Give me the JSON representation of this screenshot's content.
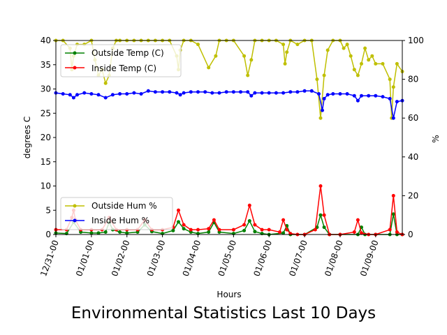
{
  "chart_data": {
    "type": "line",
    "title": "Environmental Statistics Last 10 Days",
    "xlabel": "Hours",
    "ylabel_left": "degrees C",
    "ylabel_right": "%",
    "xlim": [
      0,
      9.75
    ],
    "ylim_left": [
      0,
      40
    ],
    "ylim_right": [
      0,
      100
    ],
    "x_ticks": [
      0,
      1,
      2,
      3,
      4,
      5,
      6,
      7,
      8,
      9
    ],
    "x_tick_labels": [
      "12/31-00",
      "01/01-00",
      "01/02-00",
      "01/03-00",
      "01/04-00",
      "01/05-00",
      "01/06-00",
      "01/07-00",
      "01/08-00",
      "01/09-00"
    ],
    "y_ticks_left": [
      0,
      5,
      10,
      15,
      20,
      25,
      30,
      35,
      40
    ],
    "y_ticks_right": [
      0,
      20,
      40,
      60,
      80,
      100
    ],
    "legend_left": {
      "placement": "upper-left",
      "entries": [
        "Outside Temp (C)",
        "Inside Temp (C)"
      ]
    },
    "legend_right": {
      "placement": "lower-left",
      "entries": [
        "Outside Hum %",
        "Inside Hum %"
      ]
    },
    "series": [
      {
        "name": "Outside Hum %",
        "axis": "right",
        "color": "#bfbf00",
        "x": [
          0,
          0.2,
          0.4,
          0.45,
          0.5,
          0.6,
          0.8,
          1.0,
          1.1,
          1.2,
          1.3,
          1.4,
          1.5,
          1.6,
          1.7,
          1.8,
          2.0,
          2.2,
          2.4,
          2.6,
          2.8,
          3.0,
          3.2,
          3.4,
          3.45,
          3.5,
          3.6,
          3.8,
          4.0,
          4.3,
          4.5,
          4.6,
          4.8,
          5.0,
          5.3,
          5.4,
          5.5,
          5.6,
          5.8,
          6.0,
          6.2,
          6.4,
          6.45,
          6.5,
          6.6,
          6.8,
          7.0,
          7.2,
          7.35,
          7.45,
          7.55,
          7.65,
          7.8,
          8.0,
          8.1,
          8.2,
          8.3,
          8.4,
          8.5,
          8.6,
          8.7,
          8.8,
          8.9,
          9.0,
          9.2,
          9.4,
          9.45,
          9.5,
          9.6,
          9.75
        ],
        "y": [
          100,
          100,
          96,
          85,
          92,
          98,
          98,
          100,
          90,
          82,
          85,
          78,
          82,
          96,
          100,
          100,
          100,
          100,
          100,
          100,
          100,
          100,
          100,
          92,
          85,
          95,
          100,
          100,
          98,
          86,
          92,
          100,
          100,
          100,
          92,
          82,
          90,
          100,
          100,
          100,
          100,
          98,
          88,
          94,
          100,
          98,
          100,
          100,
          80,
          60,
          82,
          95,
          100,
          100,
          96,
          98,
          92,
          85,
          82,
          88,
          96,
          90,
          92,
          88,
          88,
          80,
          60,
          76,
          88,
          84
        ]
      },
      {
        "name": "Inside Hum %",
        "axis": "right",
        "color": "#0000ff",
        "x": [
          0,
          0.2,
          0.4,
          0.5,
          0.6,
          0.8,
          1.0,
          1.2,
          1.4,
          1.6,
          1.8,
          2.0,
          2.2,
          2.4,
          2.6,
          2.8,
          3.0,
          3.2,
          3.4,
          3.5,
          3.6,
          3.8,
          4.0,
          4.2,
          4.4,
          4.6,
          4.8,
          5.0,
          5.2,
          5.4,
          5.5,
          5.6,
          5.8,
          6.0,
          6.2,
          6.4,
          6.6,
          6.8,
          7.0,
          7.2,
          7.4,
          7.5,
          7.55,
          7.65,
          7.8,
          8.0,
          8.2,
          8.4,
          8.5,
          8.6,
          8.8,
          9.0,
          9.2,
          9.4,
          9.5,
          9.6,
          9.75
        ],
        "y": [
          73,
          72.5,
          72,
          70.5,
          72,
          73,
          72.5,
          72,
          70.5,
          72,
          72.5,
          72.5,
          73,
          72.5,
          74,
          73.5,
          73.5,
          73.5,
          73,
          72,
          73,
          73.5,
          73.5,
          73.5,
          73,
          73,
          73.5,
          73.5,
          73.5,
          73.5,
          71.5,
          73,
          73,
          73,
          73,
          73,
          73.5,
          73.5,
          74,
          74,
          72.5,
          64,
          70,
          72,
          72.5,
          72.5,
          72.5,
          71.5,
          69,
          71.5,
          71.5,
          71.5,
          71,
          70,
          60,
          68.5,
          69
        ]
      },
      {
        "name": "Outside Temp (C)",
        "axis": "left",
        "color": "#008000",
        "x": [
          0,
          0.3,
          0.5,
          0.7,
          1.0,
          1.2,
          1.4,
          1.5,
          1.6,
          1.8,
          2.0,
          2.3,
          2.5,
          2.7,
          3.0,
          3.3,
          3.45,
          3.6,
          3.8,
          4.0,
          4.3,
          4.45,
          4.6,
          5.0,
          5.3,
          5.45,
          5.6,
          5.8,
          6.0,
          6.4,
          6.5,
          6.6,
          7.0,
          7.35,
          7.45,
          7.55,
          7.7,
          8.0,
          8.5,
          8.6,
          8.7,
          9.0,
          9.4,
          9.5,
          9.6,
          9.75
        ],
        "y": [
          0.3,
          0.2,
          2.5,
          0.5,
          0.3,
          0.3,
          0.5,
          2.5,
          1.0,
          0.5,
          0.3,
          0.5,
          2.0,
          0.6,
          0.2,
          0.8,
          2.6,
          1.2,
          0.5,
          0.2,
          0.5,
          2.5,
          0.5,
          0.2,
          0.8,
          2.8,
          0.6,
          0.2,
          0,
          0.3,
          1.8,
          0,
          0,
          1.5,
          4.0,
          1.5,
          0,
          0,
          0,
          1.5,
          0,
          0,
          0,
          4.2,
          0,
          0
        ]
      },
      {
        "name": "Inside Temp (C)",
        "axis": "left",
        "color": "#ff0000",
        "x": [
          0,
          0.3,
          0.45,
          0.5,
          0.55,
          0.7,
          1.0,
          1.3,
          1.5,
          1.7,
          2.0,
          2.3,
          2.5,
          2.7,
          3.0,
          3.3,
          3.45,
          3.6,
          3.8,
          4.0,
          4.3,
          4.45,
          4.6,
          5.0,
          5.3,
          5.45,
          5.6,
          5.8,
          6.0,
          6.3,
          6.4,
          6.5,
          6.6,
          6.8,
          7.0,
          7.3,
          7.45,
          7.55,
          7.7,
          8.0,
          8.4,
          8.5,
          8.6,
          8.8,
          9.0,
          9.4,
          9.5,
          9.6,
          9.75
        ],
        "y": [
          1.0,
          1.0,
          3.5,
          5.0,
          3.0,
          1.0,
          1.0,
          1.0,
          3.5,
          1.0,
          1.0,
          1.0,
          3.0,
          1.0,
          1.0,
          1.5,
          5.0,
          2.0,
          1.0,
          1.0,
          1.2,
          3.0,
          1.0,
          1.0,
          2.0,
          6.0,
          2.0,
          1.0,
          1.0,
          0.5,
          3.0,
          1.0,
          0.2,
          0,
          0,
          1.0,
          10.0,
          4.0,
          0,
          0,
          0.5,
          3.0,
          0.3,
          0,
          0,
          1.0,
          8.0,
          0.5,
          0
        ]
      }
    ]
  }
}
